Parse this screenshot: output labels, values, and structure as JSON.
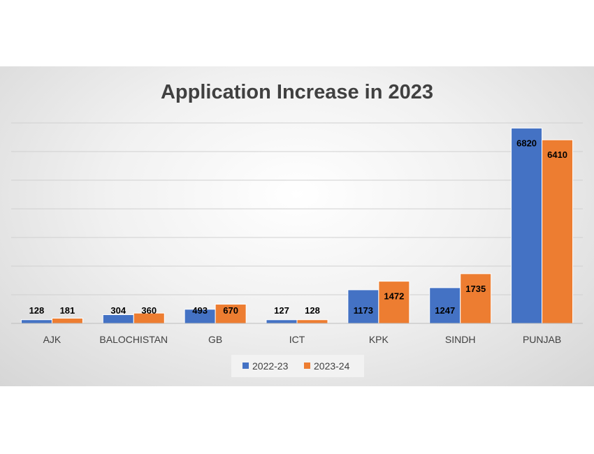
{
  "chart_data": {
    "type": "bar",
    "title": "Application Increase in 2023",
    "xlabel": "",
    "ylabel": "",
    "categories": [
      "AJK",
      "BALOCHISTAN",
      "GB",
      "ICT",
      "KPK",
      "SINDH",
      "PUNJAB"
    ],
    "series": [
      {
        "name": "2022-23",
        "color": "#4472C4",
        "values": [
          128,
          304,
          493,
          127,
          1173,
          1247,
          6820
        ]
      },
      {
        "name": "2023-24",
        "color": "#ED7D31",
        "values": [
          181,
          360,
          670,
          128,
          1472,
          1735,
          6410
        ]
      }
    ],
    "ylim": [
      0,
      7000
    ],
    "y_tick_step": 1000,
    "y_tick_labels_shown": false,
    "grid": true,
    "data_labels": true,
    "legend_position": "bottom"
  }
}
